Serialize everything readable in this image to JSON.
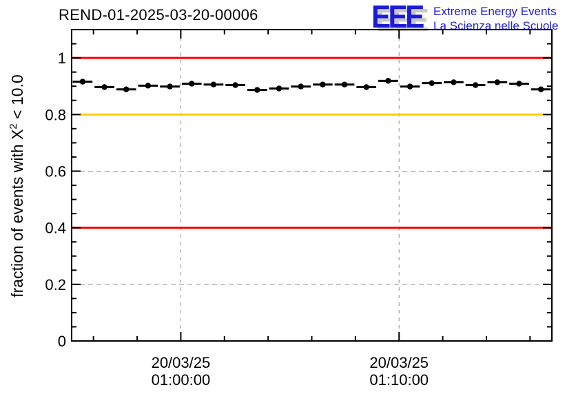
{
  "header": {
    "title": "REND-01-2025-03-20-00006",
    "logo": {
      "acronym": "EEE",
      "line1": "Extreme Energy Events",
      "line2": "La Scienza nelle Scuole",
      "color": "#1b1bd8",
      "shadow_color": "#c8c8c8"
    }
  },
  "chart_data": {
    "type": "scatter",
    "title": "REND-01-2025-03-20-00006",
    "ylabel": "fraction of events with X² < 10.0",
    "ylabel_parts": {
      "prefix": "fraction of events with X",
      "sup": "2",
      "suffix": " < 10.0"
    },
    "ylim": [
      0,
      1.1
    ],
    "y_major_ticks": [
      0,
      0.2,
      0.4,
      0.6,
      0.8,
      1
    ],
    "y_tick_labels": [
      "0",
      "0.2",
      "0.4",
      "0.6",
      "0.8",
      "1"
    ],
    "y_minor_step": 0.05,
    "x_range_minutes": [
      -5,
      17
    ],
    "x_minor_step_minutes": 2,
    "x_major_ticks_minutes": [
      0,
      10
    ],
    "x_tick_labels": [
      {
        "t": 0,
        "lines": [
          "20/03/25",
          "01:00:00"
        ]
      },
      {
        "t": 10,
        "lines": [
          "20/03/25",
          "01:10:00"
        ]
      }
    ],
    "grid": true,
    "grid_color": "#909090",
    "frame_color": "#000000",
    "reference_lines": [
      {
        "y": 1.0,
        "color": "#ff0000"
      },
      {
        "y": 0.8,
        "color": "#ffcc00"
      },
      {
        "y": 0.4,
        "color": "#ff0000"
      }
    ],
    "series": [
      {
        "name": "fraction of events with chi2 < 10",
        "marker": "filled-circle",
        "color": "#000000",
        "x_err_minutes": 0.5,
        "x_minutes": [
          -4.5,
          -3.5,
          -2.5,
          -1.5,
          -0.5,
          0.5,
          1.5,
          2.5,
          3.5,
          4.5,
          5.5,
          6.5,
          7.5,
          8.5,
          9.5,
          10.5,
          11.5,
          12.5,
          13.5,
          14.5,
          15.5,
          16.5
        ],
        "times": [
          "00:55:30",
          "00:56:30",
          "00:57:30",
          "00:58:30",
          "00:59:30",
          "01:00:30",
          "01:01:30",
          "01:02:30",
          "01:03:30",
          "01:04:30",
          "01:05:30",
          "01:06:30",
          "01:07:30",
          "01:08:30",
          "01:09:30",
          "01:10:30",
          "01:11:30",
          "01:12:30",
          "01:13:30",
          "01:14:30",
          "01:15:30",
          "01:16:30"
        ],
        "values": [
          0.916,
          0.897,
          0.889,
          0.902,
          0.899,
          0.909,
          0.906,
          0.904,
          0.887,
          0.892,
          0.899,
          0.906,
          0.906,
          0.897,
          0.919,
          0.899,
          0.911,
          0.914,
          0.904,
          0.914,
          0.909,
          0.889
        ]
      }
    ]
  }
}
